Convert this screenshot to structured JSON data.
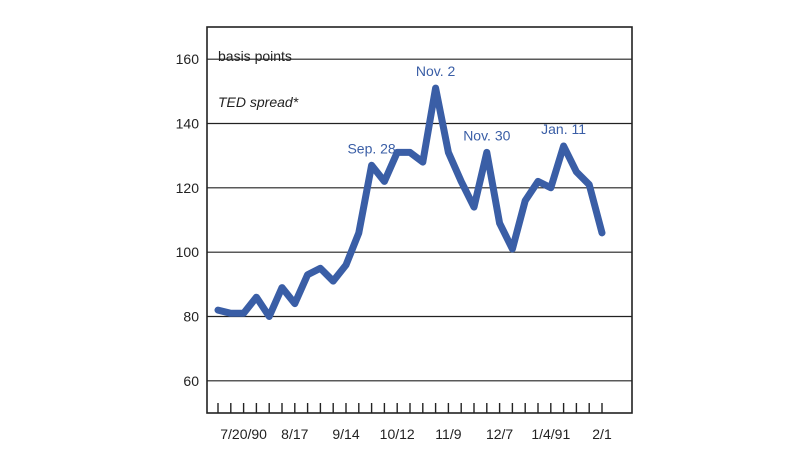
{
  "chart_data": {
    "type": "line",
    "ylabel": "basis points",
    "series_label": "TED spread*",
    "ylim": [
      50,
      170
    ],
    "yticks": [
      60,
      80,
      100,
      120,
      140,
      160
    ],
    "x_tick_labels": [
      "7/20/90",
      "8/17",
      "9/14",
      "10/12",
      "11/9",
      "12/7",
      "1/4/91",
      "2/1"
    ],
    "x_tick_label_index": [
      2,
      6,
      10,
      14,
      18,
      22,
      26,
      30
    ],
    "grid": true,
    "series": [
      {
        "values": [
          82,
          81,
          81,
          86,
          80,
          89,
          84,
          93,
          95,
          91,
          96,
          106,
          127,
          122,
          131,
          131,
          128,
          151,
          131,
          122,
          114,
          131,
          109,
          101,
          116,
          122,
          120,
          133,
          125,
          121,
          106
        ]
      }
    ],
    "annotations": [
      {
        "text": "Sep. 28",
        "index": 12
      },
      {
        "text": "Nov. 2",
        "index": 17
      },
      {
        "text": "Nov. 30",
        "index": 21
      },
      {
        "text": "Jan. 11",
        "index": 27
      }
    ],
    "line_color": "#3a5ea6"
  }
}
